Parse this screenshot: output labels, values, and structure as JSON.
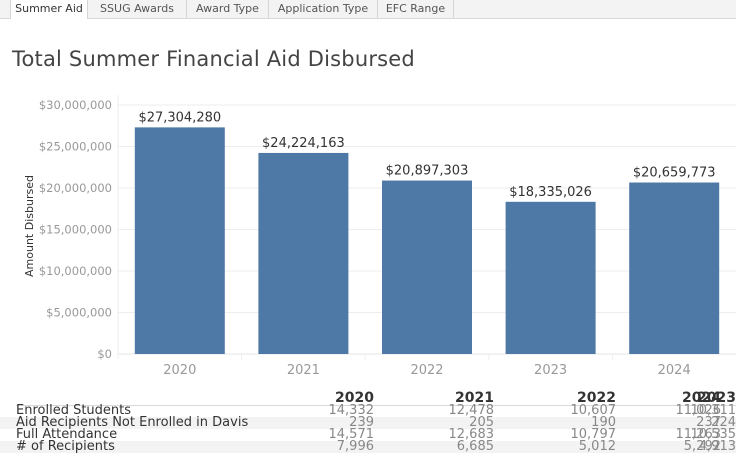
{
  "tabs": [
    {
      "label": "Summer Aid",
      "active": true
    },
    {
      "label": "SSUG Awards",
      "active": false
    },
    {
      "label": "Award Type",
      "active": false
    },
    {
      "label": "Application Type",
      "active": false
    },
    {
      "label": "EFC Range",
      "active": false
    }
  ],
  "page_title": "Total Summer Financial Aid Disbursed",
  "colors": {
    "bar": "#4e79a7",
    "grid": "#eeeeee",
    "tick_text": "#999999",
    "label_text": "#333333"
  },
  "chart_data": {
    "type": "bar",
    "title": "Total Summer Financial Aid Disbursed",
    "xlabel": "",
    "ylabel": "Amount Disbursed",
    "categories": [
      "2020",
      "2021",
      "2022",
      "2023",
      "2024"
    ],
    "values": [
      27304280,
      24224163,
      20897303,
      18335026,
      20659773
    ],
    "data_labels": [
      "$27,304,280",
      "$24,224,163",
      "$20,897,303",
      "$18,335,026",
      "$20,659,773"
    ],
    "ylim": [
      0,
      30000000
    ],
    "yticks": [
      0,
      5000000,
      10000000,
      15000000,
      20000000,
      25000000,
      30000000
    ],
    "ytick_labels": [
      "$0",
      "$5,000,000",
      "$10,000,000",
      "$15,000,000",
      "$20,000,000",
      "$25,000,000",
      "$30,000,000"
    ],
    "grid": true,
    "legend": "none"
  },
  "table": {
    "columns": [
      "2020",
      "2021",
      "2022",
      "2023",
      "2024"
    ],
    "rows": [
      {
        "label": "Enrolled Students",
        "values": [
          "14,332",
          "12,478",
          "10,607",
          "10,311",
          "11,026"
        ]
      },
      {
        "label": "Aid Recipients Not Enrolled in Davis",
        "values": [
          "239",
          "205",
          "190",
          "224",
          "237"
        ]
      },
      {
        "label": "Full Attendance",
        "values": [
          "14,571",
          "12,683",
          "10,797",
          "10,535",
          "11,263"
        ]
      },
      {
        "label": "# of Recipients",
        "values": [
          "7,996",
          "6,685",
          "5,012",
          "4,913",
          "5,292"
        ]
      }
    ]
  }
}
